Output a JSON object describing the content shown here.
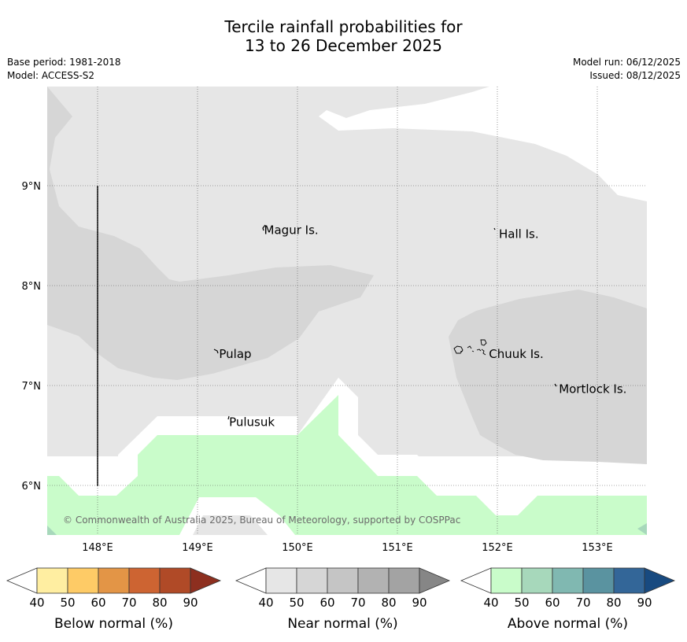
{
  "title": {
    "line1": "Tercile rainfall probabilities for",
    "line2": "13 to 26 December 2025"
  },
  "meta": {
    "base_period": "Base period: 1981-2018",
    "model": "Model: ACCESS-S2",
    "model_run": "Model run: 06/12/2025",
    "issued": "Issued: 08/12/2025"
  },
  "map": {
    "lat_labels": [
      {
        "value": 9,
        "label": "9°N"
      },
      {
        "value": 8,
        "label": "8°N"
      },
      {
        "value": 7,
        "label": "7°N"
      },
      {
        "value": 6,
        "label": "6°N"
      }
    ],
    "lon_labels": [
      {
        "value": 148,
        "label": "148°E"
      },
      {
        "value": 149,
        "label": "149°E"
      },
      {
        "value": 150,
        "label": "150°E"
      },
      {
        "value": 151,
        "label": "151°E"
      },
      {
        "value": 152,
        "label": "152°E"
      },
      {
        "value": 153,
        "label": "153°E"
      }
    ],
    "places": [
      {
        "name": "Magur Is.",
        "lon": 149.65,
        "lat": 8.57
      },
      {
        "name": "Hall Is.",
        "lon": 152.0,
        "lat": 8.53
      },
      {
        "name": "Pulap",
        "lon": 149.2,
        "lat": 7.33
      },
      {
        "name": "Chuuk Is.",
        "lon": 151.9,
        "lat": 7.33
      },
      {
        "name": "Mortlock Is.",
        "lon": 152.6,
        "lat": 6.98
      },
      {
        "name": "Pulusuk",
        "lon": 149.3,
        "lat": 6.65
      }
    ],
    "copyright": "© Commonwealth of Australia 2025, Bureau of Meteorology, supported by COSPPac",
    "colors": {
      "near_40": "#e6e6e6",
      "near_50": "#d6d6d6",
      "above_40": "#c9fcca",
      "above_50": "#a7d8bb",
      "ocean_gap": "#ffffff"
    }
  },
  "legends": [
    {
      "title": "Below normal (%)",
      "ticks": [
        "40",
        "50",
        "60",
        "70",
        "80",
        "90"
      ],
      "colors": [
        "#ffeea1",
        "#fecb66",
        "#e39546",
        "#cd6432",
        "#b04a27",
        "#8d2f1f"
      ]
    },
    {
      "title": "Near normal (%)",
      "ticks": [
        "40",
        "50",
        "60",
        "70",
        "80",
        "90"
      ],
      "colors": [
        "#e6e6e6",
        "#d6d6d6",
        "#c5c5c5",
        "#b2b2b2",
        "#a3a3a3",
        "#868686"
      ]
    },
    {
      "title": "Above normal (%)",
      "ticks": [
        "40",
        "50",
        "60",
        "70",
        "80",
        "90"
      ],
      "colors": [
        "#c9fcca",
        "#a7d8bb",
        "#80b8b1",
        "#5a93a0",
        "#336698",
        "#184a80"
      ]
    }
  ]
}
